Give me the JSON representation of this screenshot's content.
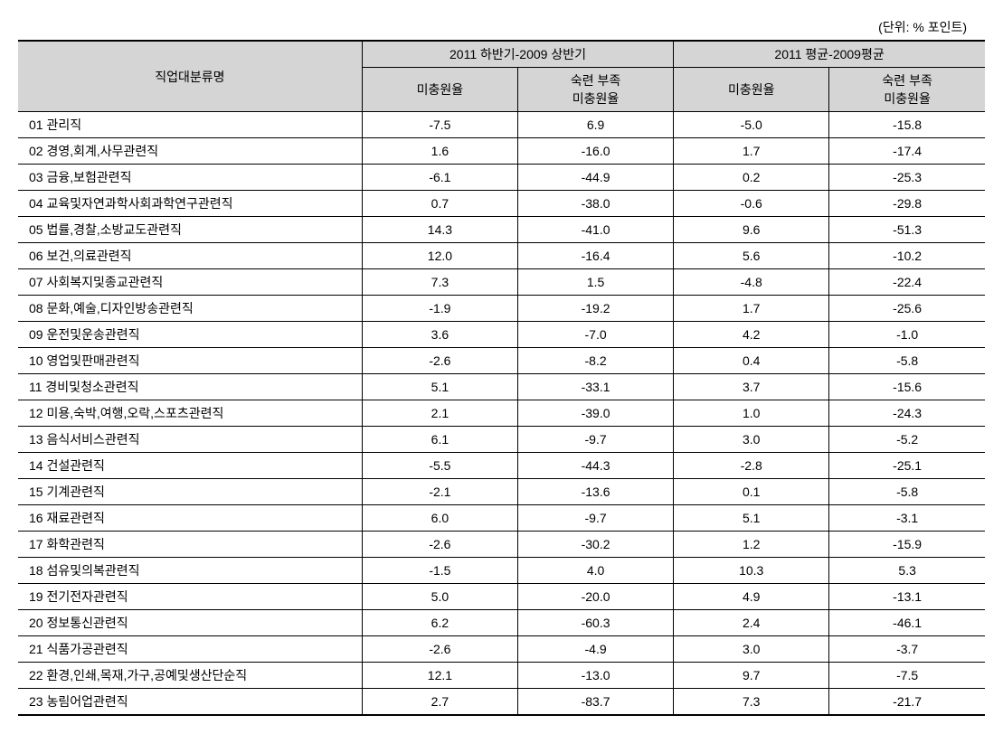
{
  "unit_label": "(단위: % 포인트)",
  "table": {
    "header": {
      "row_label": "직업대분류명",
      "group1": "2011 하반기-2009 상반기",
      "group2": "2011 평균-2009평균",
      "sub1": "미충원율",
      "sub2_line1": "숙련 부족",
      "sub2_line2": "미충원율",
      "sub3": "미충원율",
      "sub4_line1": "숙련 부족",
      "sub4_line2": "미충원율"
    },
    "rows": [
      {
        "label": "01 관리직",
        "c1": "-7.5",
        "c2": "6.9",
        "c3": "-5.0",
        "c4": "-15.8"
      },
      {
        "label": "02 경영,회계,사무관련직",
        "c1": "1.6",
        "c2": "-16.0",
        "c3": "1.7",
        "c4": "-17.4"
      },
      {
        "label": "03 금융,보험관련직",
        "c1": "-6.1",
        "c2": "-44.9",
        "c3": "0.2",
        "c4": "-25.3"
      },
      {
        "label": "04 교육및자연과학사회과학연구관련직",
        "c1": "0.7",
        "c2": "-38.0",
        "c3": "-0.6",
        "c4": "-29.8"
      },
      {
        "label": "05 법률,경찰,소방교도관련직",
        "c1": "14.3",
        "c2": "-41.0",
        "c3": "9.6",
        "c4": "-51.3"
      },
      {
        "label": "06 보건,의료관련직",
        "c1": "12.0",
        "c2": "-16.4",
        "c3": "5.6",
        "c4": "-10.2"
      },
      {
        "label": "07 사회복지및종교관련직",
        "c1": "7.3",
        "c2": "1.5",
        "c3": "-4.8",
        "c4": "-22.4"
      },
      {
        "label": "08 문화,예술,디자인방송관련직",
        "c1": "-1.9",
        "c2": "-19.2",
        "c3": "1.7",
        "c4": "-25.6"
      },
      {
        "label": "09 운전및운송관련직",
        "c1": "3.6",
        "c2": "-7.0",
        "c3": "4.2",
        "c4": "-1.0"
      },
      {
        "label": "10 영업및판매관련직",
        "c1": "-2.6",
        "c2": "-8.2",
        "c3": "0.4",
        "c4": "-5.8"
      },
      {
        "label": "11 경비및청소관련직",
        "c1": "5.1",
        "c2": "-33.1",
        "c3": "3.7",
        "c4": "-15.6"
      },
      {
        "label": "12 미용,숙박,여행,오락,스포츠관련직",
        "c1": "2.1",
        "c2": "-39.0",
        "c3": "1.0",
        "c4": "-24.3"
      },
      {
        "label": "13 음식서비스관련직",
        "c1": "6.1",
        "c2": "-9.7",
        "c3": "3.0",
        "c4": "-5.2"
      },
      {
        "label": "14 건설관련직",
        "c1": "-5.5",
        "c2": "-44.3",
        "c3": "-2.8",
        "c4": "-25.1"
      },
      {
        "label": "15 기계관련직",
        "c1": "-2.1",
        "c2": "-13.6",
        "c3": "0.1",
        "c4": "-5.8"
      },
      {
        "label": "16 재료관련직",
        "c1": "6.0",
        "c2": "-9.7",
        "c3": "5.1",
        "c4": "-3.1"
      },
      {
        "label": "17 화학관련직",
        "c1": "-2.6",
        "c2": "-30.2",
        "c3": "1.2",
        "c4": "-15.9"
      },
      {
        "label": "18 섬유및의복관련직",
        "c1": "-1.5",
        "c2": "4.0",
        "c3": "10.3",
        "c4": "5.3"
      },
      {
        "label": "19 전기전자관련직",
        "c1": "5.0",
        "c2": "-20.0",
        "c3": "4.9",
        "c4": "-13.1"
      },
      {
        "label": "20 정보통신관련직",
        "c1": "6.2",
        "c2": "-60.3",
        "c3": "2.4",
        "c4": "-46.1"
      },
      {
        "label": "21 식품가공관련직",
        "c1": "-2.6",
        "c2": "-4.9",
        "c3": "3.0",
        "c4": "-3.7"
      },
      {
        "label": "22 환경,인쇄,목재,가구,공예및생산단순직",
        "c1": "12.1",
        "c2": "-13.0",
        "c3": "9.7",
        "c4": "-7.5"
      },
      {
        "label": "23 농림어업관련직",
        "c1": "2.7",
        "c2": "-83.7",
        "c3": "7.3",
        "c4": "-21.7"
      }
    ]
  }
}
